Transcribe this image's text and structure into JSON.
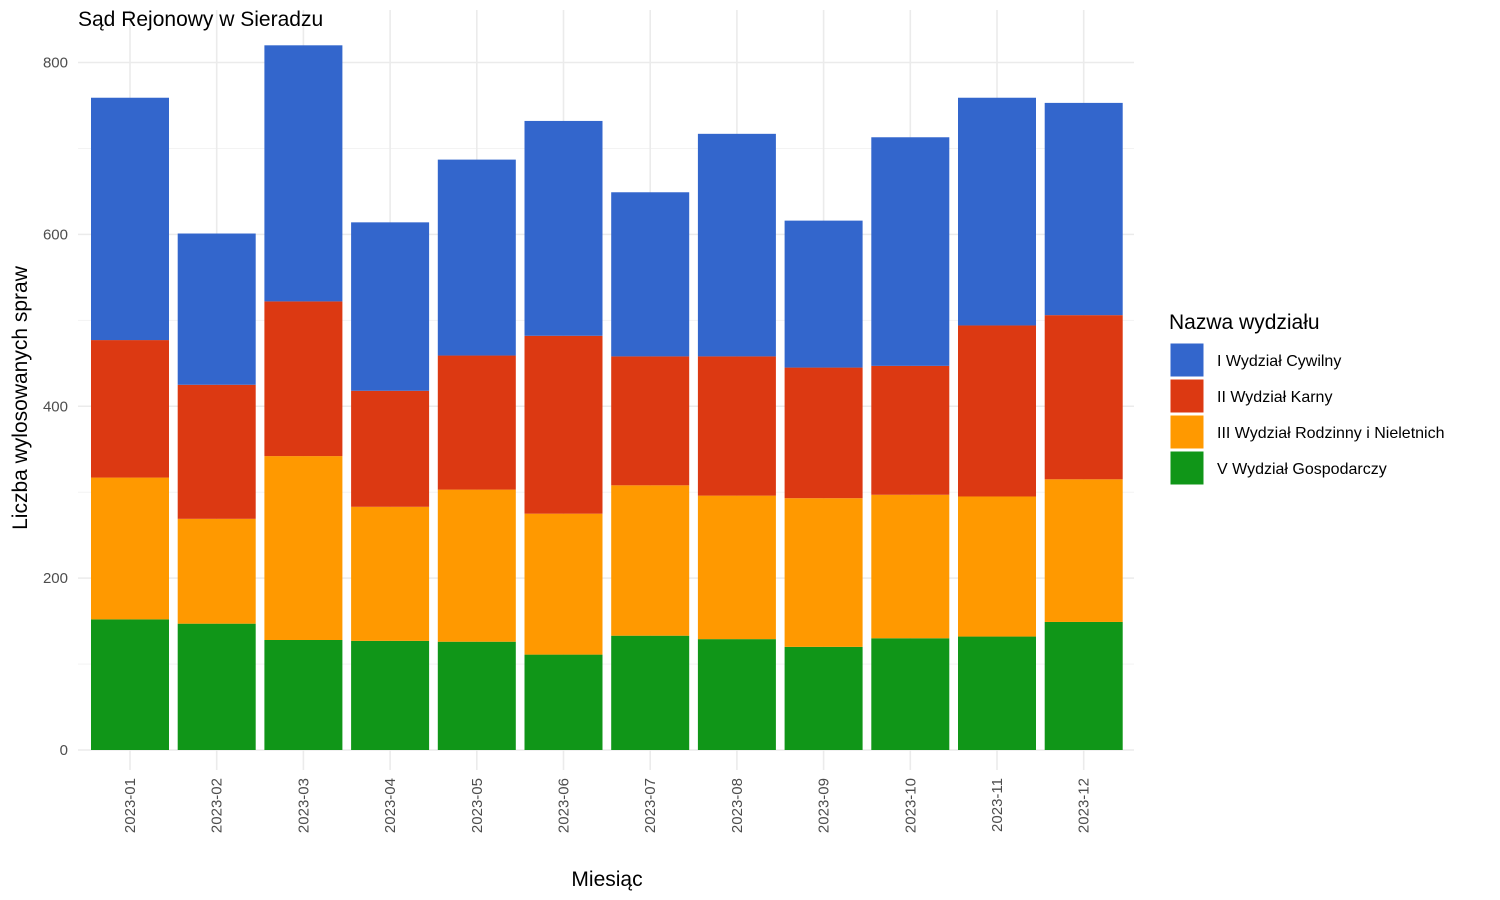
{
  "chart_data": {
    "type": "bar",
    "stacked": true,
    "title": "Sąd Rejonowy w Sieradzu",
    "xlabel": "Miesiąc",
    "ylabel": "Liczba wylosowanych spraw",
    "ylim": [
      0,
      820
    ],
    "yticks": [
      0,
      200,
      400,
      600,
      800
    ],
    "grid": true,
    "legend": {
      "title": "Nazwa wydziału",
      "position": "right"
    },
    "categories": [
      "2023-01",
      "2023-02",
      "2023-03",
      "2023-04",
      "2023-05",
      "2023-06",
      "2023-07",
      "2023-08",
      "2023-09",
      "2023-10",
      "2023-11",
      "2023-12"
    ],
    "series": [
      {
        "name": "V Wydział Gospodarczy",
        "color": "#109618",
        "values": [
          152,
          147,
          128,
          127,
          126,
          111,
          133,
          129,
          120,
          130,
          132,
          149
        ]
      },
      {
        "name": "III Wydział Rodzinny i Nieletnich",
        "color": "#ff9900",
        "values": [
          165,
          122,
          214,
          156,
          177,
          164,
          175,
          167,
          173,
          167,
          163,
          166
        ]
      },
      {
        "name": "II Wydział Karny",
        "color": "#dc3912",
        "values": [
          160,
          156,
          180,
          135,
          156,
          207,
          150,
          162,
          152,
          150,
          199,
          191
        ]
      },
      {
        "name": "I Wydział Cywilny",
        "color": "#3366cc",
        "values": [
          282,
          176,
          298,
          196,
          228,
          250,
          191,
          259,
          171,
          266,
          265,
          247
        ]
      }
    ],
    "legend_order": [
      "I Wydział Cywilny",
      "II Wydział Karny",
      "III Wydział Rodzinny i Nieletnich",
      "V Wydział Gospodarczy"
    ]
  }
}
